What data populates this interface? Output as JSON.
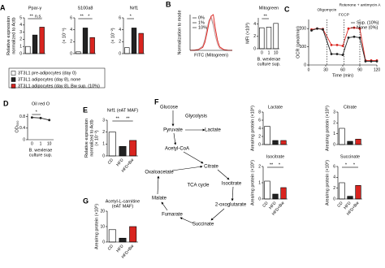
{
  "chart_data": [
    {
      "type": "bar",
      "panel": "A",
      "title": "Ppar-γ",
      "ylabel": [
        "Relative expression",
        "normalized to Actb"
      ],
      "categories": [
        null,
        null,
        null
      ],
      "values": [
        1.0,
        2.6,
        3.7
      ],
      "colors": [
        "#ffffff",
        "#222222",
        "#d9241f"
      ],
      "ylim": [
        0,
        5
      ],
      "yticks": [
        0,
        1,
        2,
        3,
        4,
        5
      ],
      "annotations": [
        "**",
        "n.s."
      ]
    },
    {
      "type": "bar",
      "title": "S100a8",
      "y_scale_label": "(× 10⁻¹)",
      "categories": [
        null,
        null,
        null
      ],
      "values": [
        0.3,
        4.3,
        2.7
      ],
      "colors": [
        "#ffffff",
        "#222222",
        "#d9241f"
      ],
      "ylim": [
        0,
        6
      ],
      "yticks": [
        0,
        2,
        4,
        6
      ],
      "annotations": [
        "**",
        "*"
      ]
    },
    {
      "type": "bar",
      "title": "Nrf1",
      "y_scale_label": "(× 10⁻²)",
      "categories": [
        null,
        null,
        null
      ],
      "values": [
        1.0,
        4.3,
        3.4
      ],
      "colors": [
        "#ffffff",
        "#222222",
        "#d9241f"
      ],
      "ylim": [
        0,
        6
      ],
      "yticks": [
        0,
        2,
        4,
        6
      ],
      "annotations": [
        "*"
      ]
    },
    {
      "type": "line",
      "panel": "B",
      "xlabel": [
        "FITC (Mitogreen)"
      ],
      "ylabel": [
        "Normalization to mode"
      ],
      "x": [
        0,
        1,
        2,
        3,
        3.5,
        4,
        4.5,
        5,
        5.5,
        6,
        6.5,
        7,
        8,
        9,
        10
      ],
      "xlim": [
        0,
        10
      ],
      "ylim": [
        0,
        100
      ],
      "legend": "top-left",
      "series": [
        {
          "name": "0%",
          "color": "#999999",
          "values": [
            0,
            1,
            3,
            12,
            30,
            60,
            85,
            90,
            70,
            40,
            18,
            6,
            1,
            0,
            0
          ]
        },
        {
          "name": "1%",
          "color": "#f0a0a0",
          "values": [
            0,
            1,
            2,
            10,
            26,
            55,
            82,
            95,
            78,
            45,
            20,
            7,
            1,
            0,
            0
          ]
        },
        {
          "name": "10%",
          "color": "#d9241f",
          "values": [
            0,
            0,
            2,
            8,
            22,
            48,
            78,
            96,
            100,
            60,
            28,
            10,
            2,
            0,
            0
          ]
        }
      ]
    },
    {
      "type": "bar",
      "title": "Mitogreen",
      "ylabel": [
        "MFI (×10³)"
      ],
      "categories": [
        "0",
        "1",
        "10"
      ],
      "values": [
        3.4,
        3.5,
        4.1
      ],
      "colors": [
        "#ffffff",
        "#ffffff",
        "#ffffff"
      ],
      "xlabel": [
        "B. wexlerae",
        "culture sup."
      ],
      "ylim": [
        0,
        5
      ],
      "yticks": [
        0,
        2,
        4
      ],
      "annotations": [
        "**"
      ]
    },
    {
      "type": "line",
      "panel": "C",
      "ylabel": [
        "OCR (pmol/min)"
      ],
      "xlabel": [
        "Time (min)"
      ],
      "x": [
        5,
        15,
        25,
        40,
        50,
        60,
        70,
        80,
        90,
        100,
        110,
        120
      ],
      "xlim": [
        0,
        120
      ],
      "xticks": [
        0,
        30,
        60,
        90,
        120
      ],
      "ylim": [
        0,
        250
      ],
      "yticks": [
        0,
        100,
        200
      ],
      "markers": true,
      "legend": "top-right",
      "annotations": [
        {
          "text": "Oligomycin",
          "x": 32
        },
        {
          "text": "FCCP",
          "x": 62
        },
        {
          "text": "Rotenone + antimycin A",
          "x": 90
        }
      ],
      "series": [
        {
          "name": "Sup. (10%)",
          "color": "#d9241f",
          "values": [
            195,
            200,
            198,
            110,
            110,
            105,
            200,
            205,
            200,
            25,
            25,
            25
          ]
        },
        {
          "name": "None (0%)",
          "color": "#222222",
          "values": [
            190,
            200,
            195,
            60,
            60,
            55,
            150,
            155,
            150,
            20,
            20,
            20
          ]
        }
      ]
    },
    {
      "type": "line",
      "panel": "D",
      "title": "Oil red O",
      "ylabel": [
        "OD₅₀₀"
      ],
      "categories": [
        "0",
        "1",
        "10"
      ],
      "values": [
        0.77,
        0.75,
        0.68
      ],
      "color": "#222222",
      "markers": true,
      "xlabel": [
        "B. wexlerae",
        "culture sup."
      ],
      "ylim": [
        0,
        0.9
      ],
      "yticks": [
        0,
        0.4,
        0.8
      ],
      "annotations": [
        "*"
      ]
    },
    {
      "type": "bar",
      "panel": "E",
      "title": "Nrf1 (eAT MAF)",
      "ylabel": [
        "Relative expression",
        "normalized to Actb"
      ],
      "y_scale_label": "(× 10⁻²)",
      "categories": [
        "CD",
        "HFD",
        "HFD+Bw"
      ],
      "values": [
        2.0,
        0.8,
        1.3
      ],
      "colors": [
        "#ffffff",
        "#222222",
        "#d9241f"
      ],
      "ylim": [
        0,
        3
      ],
      "yticks": [
        0,
        1,
        2,
        3
      ],
      "annotations": [
        "**",
        "**"
      ]
    },
    {
      "type": "bar",
      "title": "Lactate",
      "ylabel": [
        "Area/mg protein (×10⁶)"
      ],
      "categories": [
        null,
        null,
        null
      ],
      "values": [
        4.5,
        1.0,
        1.0
      ],
      "colors": [
        "#ffffff",
        "#222222",
        "#d9241f"
      ],
      "ylim": [
        0,
        8
      ],
      "yticks": [
        0,
        2,
        4,
        6,
        8
      ]
    },
    {
      "type": "bar",
      "title": "Citrate",
      "ylabel": [
        "Area/mg protein (×10⁵)"
      ],
      "categories": [
        null,
        null,
        null
      ],
      "values": [
        1.5,
        0.3,
        0.5
      ],
      "colors": [
        "#ffffff",
        "#222222",
        "#d9241f"
      ],
      "ylim": [
        0,
        3
      ],
      "yticks": [
        0,
        1,
        2,
        3
      ]
    },
    {
      "type": "bar",
      "title": "Isocitrate",
      "ylabel": [
        "Area/mg protein (×10⁵)"
      ],
      "categories": [
        "CD",
        "HFD",
        "HFD+Bw"
      ],
      "values": [
        1.1,
        0.3,
        0.7
      ],
      "colors": [
        "#ffffff",
        "#222222",
        "#d9241f"
      ],
      "ylim": [
        0,
        2
      ],
      "yticks": [
        0,
        1,
        2
      ],
      "annotations": [
        "**",
        "*"
      ]
    },
    {
      "type": "bar",
      "title": "Succinate",
      "ylabel": [
        "Area/mg protein (×10⁵)"
      ],
      "categories": [
        "CD",
        "HFD",
        "HFD+Bw"
      ],
      "values": [
        3.0,
        0.5,
        2.5
      ],
      "colors": [
        "#ffffff",
        "#222222",
        "#d9241f"
      ],
      "ylim": [
        0,
        6
      ],
      "yticks": [
        0,
        2,
        4,
        6
      ],
      "annotations": [
        "*",
        "*"
      ]
    },
    {
      "type": "bar",
      "panel": "G",
      "title": [
        "Acetyl-L-carnitine",
        "(eAT MAF)"
      ],
      "ylabel": [
        "Area/mg protein (×10⁵)"
      ],
      "categories": [
        "CD",
        "HFD",
        "HFD+Bw"
      ],
      "values": [
        8,
        2.5,
        10
      ],
      "colors": [
        "#ffffff",
        "#222222",
        "#d9241f"
      ],
      "ylim": [
        0,
        20
      ],
      "yticks": [
        0,
        10,
        20
      ]
    }
  ],
  "panel_a_legend": {
    "entries": [
      {
        "name": "3T3L1 pre-adipocytes (day 0)",
        "color": "#ffffff"
      },
      {
        "name": "3T3L1 adipocytes (day 8), none",
        "color": "#222222"
      },
      {
        "name": "3T3L1 adipocytes (day 8), Bw sup. (10%)",
        "color": "#d9241f"
      }
    ]
  },
  "pathway": {
    "panel": "F",
    "nodes": [
      "Glucose",
      "Glycolysis",
      "Pyruvate",
      "Lactate",
      "Acetyl-CoA",
      "Citrate",
      "Oxaloacetate",
      "Isocitrate",
      "TCA cycle",
      "Malate",
      "2-oxoglutarate",
      "Fumarate",
      "Succinate"
    ]
  }
}
